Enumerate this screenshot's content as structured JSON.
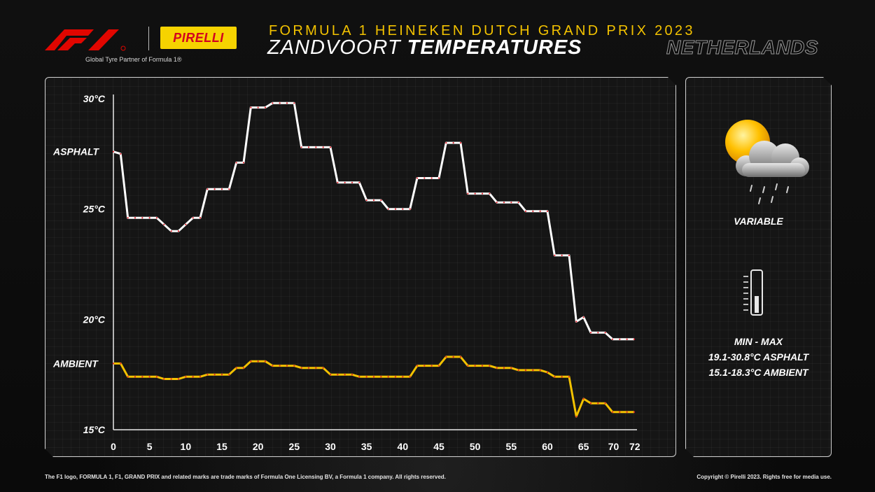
{
  "header": {
    "tagline": "Global Tyre Partner of Formula 1®",
    "pirelli_logo": "PIRELLI",
    "event": "FORMULA 1 HEINEKEN DUTCH GRAND PRIX 2023",
    "venue": "ZANDVOORT",
    "subject": "TEMPERATURES",
    "country": "NETHERLANDS"
  },
  "side": {
    "weather_icon": "sun-cloud-rain-icon",
    "weather": "VARIABLE",
    "thermometer_icon": "thermometer-icon",
    "minmax_label": "MIN  -  MAX",
    "asphalt_range": "19.1-30.8°C ASPHALT",
    "ambient_range": "15.1-18.3°C AMBIENT"
  },
  "footer": {
    "left": "The F1 logo, FORMULA 1, F1, GRAND PRIX and related marks are trade marks of Formula One Licensing BV, a Formula 1 company. All rights reserved.",
    "right": "Copyright © Pirelli 2023. Rights free for media use."
  },
  "colors": {
    "asphalt": "#ffffff",
    "ambient": "#f3c200",
    "marker": "#e0202a",
    "accent": "#f3c200"
  },
  "chart_data": {
    "type": "line",
    "xlim": [
      0,
      72
    ],
    "ylim": [
      15,
      30
    ],
    "x_ticks": [
      "0",
      "5",
      "10",
      "15",
      "20",
      "25",
      "30",
      "35",
      "40",
      "45",
      "50",
      "55",
      "60",
      "65",
      "70",
      "72"
    ],
    "y_ticks": [
      {
        "value": 30,
        "label": "30°C"
      },
      {
        "value": 25,
        "label": "25°C"
      },
      {
        "value": 20,
        "label": "20°C"
      },
      {
        "value": 15,
        "label": "15°C"
      }
    ],
    "series": [
      {
        "name": "ASPHALT",
        "points": [
          [
            0,
            27.6
          ],
          [
            1,
            27.5
          ],
          [
            2,
            24.6
          ],
          [
            3,
            24.6
          ],
          [
            4,
            24.6
          ],
          [
            5,
            24.6
          ],
          [
            6,
            24.6
          ],
          [
            7,
            24.3
          ],
          [
            8,
            24.0
          ],
          [
            9,
            24.0
          ],
          [
            10,
            24.3
          ],
          [
            11,
            24.6
          ],
          [
            12,
            24.6
          ],
          [
            13,
            25.9
          ],
          [
            14,
            25.9
          ],
          [
            15,
            25.9
          ],
          [
            16,
            25.9
          ],
          [
            17,
            27.1
          ],
          [
            18,
            27.1
          ],
          [
            19,
            29.6
          ],
          [
            20,
            29.6
          ],
          [
            21,
            29.6
          ],
          [
            22,
            29.8
          ],
          [
            23,
            29.8
          ],
          [
            24,
            29.8
          ],
          [
            25,
            29.8
          ],
          [
            26,
            27.8
          ],
          [
            27,
            27.8
          ],
          [
            28,
            27.8
          ],
          [
            29,
            27.8
          ],
          [
            30,
            27.8
          ],
          [
            31,
            26.2
          ],
          [
            32,
            26.2
          ],
          [
            33,
            26.2
          ],
          [
            34,
            26.2
          ],
          [
            35,
            25.4
          ],
          [
            36,
            25.4
          ],
          [
            37,
            25.4
          ],
          [
            38,
            25.0
          ],
          [
            39,
            25.0
          ],
          [
            40,
            25.0
          ],
          [
            41,
            25.0
          ],
          [
            42,
            26.4
          ],
          [
            43,
            26.4
          ],
          [
            44,
            26.4
          ],
          [
            45,
            26.4
          ],
          [
            46,
            28.0
          ],
          [
            47,
            28.0
          ],
          [
            48,
            28.0
          ],
          [
            49,
            25.7
          ],
          [
            50,
            25.7
          ],
          [
            51,
            25.7
          ],
          [
            52,
            25.7
          ],
          [
            53,
            25.3
          ],
          [
            54,
            25.3
          ],
          [
            55,
            25.3
          ],
          [
            56,
            25.3
          ],
          [
            57,
            24.9
          ],
          [
            58,
            24.9
          ],
          [
            59,
            24.9
          ],
          [
            60,
            24.9
          ],
          [
            61,
            22.9
          ],
          [
            62,
            22.9
          ],
          [
            63,
            22.9
          ],
          [
            64,
            19.9
          ],
          [
            65,
            20.1
          ],
          [
            66,
            19.4
          ],
          [
            67,
            19.4
          ],
          [
            68,
            19.4
          ],
          [
            69,
            19.1
          ],
          [
            70,
            19.1
          ],
          [
            71,
            19.1
          ],
          [
            72,
            19.1
          ]
        ]
      },
      {
        "name": "AMBIENT",
        "points": [
          [
            0,
            18.0
          ],
          [
            1,
            18.0
          ],
          [
            2,
            17.4
          ],
          [
            3,
            17.4
          ],
          [
            4,
            17.4
          ],
          [
            5,
            17.4
          ],
          [
            6,
            17.4
          ],
          [
            7,
            17.3
          ],
          [
            8,
            17.3
          ],
          [
            9,
            17.3
          ],
          [
            10,
            17.4
          ],
          [
            11,
            17.4
          ],
          [
            12,
            17.4
          ],
          [
            13,
            17.5
          ],
          [
            14,
            17.5
          ],
          [
            15,
            17.5
          ],
          [
            16,
            17.5
          ],
          [
            17,
            17.8
          ],
          [
            18,
            17.8
          ],
          [
            19,
            18.1
          ],
          [
            20,
            18.1
          ],
          [
            21,
            18.1
          ],
          [
            22,
            17.9
          ],
          [
            23,
            17.9
          ],
          [
            24,
            17.9
          ],
          [
            25,
            17.9
          ],
          [
            26,
            17.8
          ],
          [
            27,
            17.8
          ],
          [
            28,
            17.8
          ],
          [
            29,
            17.8
          ],
          [
            30,
            17.5
          ],
          [
            31,
            17.5
          ],
          [
            32,
            17.5
          ],
          [
            33,
            17.5
          ],
          [
            34,
            17.4
          ],
          [
            35,
            17.4
          ],
          [
            36,
            17.4
          ],
          [
            37,
            17.4
          ],
          [
            38,
            17.4
          ],
          [
            39,
            17.4
          ],
          [
            40,
            17.4
          ],
          [
            41,
            17.4
          ],
          [
            42,
            17.9
          ],
          [
            43,
            17.9
          ],
          [
            44,
            17.9
          ],
          [
            45,
            17.9
          ],
          [
            46,
            18.3
          ],
          [
            47,
            18.3
          ],
          [
            48,
            18.3
          ],
          [
            49,
            17.9
          ],
          [
            50,
            17.9
          ],
          [
            51,
            17.9
          ],
          [
            52,
            17.9
          ],
          [
            53,
            17.8
          ],
          [
            54,
            17.8
          ],
          [
            55,
            17.8
          ],
          [
            56,
            17.7
          ],
          [
            57,
            17.7
          ],
          [
            58,
            17.7
          ],
          [
            59,
            17.7
          ],
          [
            60,
            17.6
          ],
          [
            61,
            17.4
          ],
          [
            62,
            17.4
          ],
          [
            63,
            17.4
          ],
          [
            64,
            15.6
          ],
          [
            65,
            16.4
          ],
          [
            66,
            16.2
          ],
          [
            67,
            16.2
          ],
          [
            68,
            16.2
          ],
          [
            69,
            15.8
          ],
          [
            70,
            15.8
          ],
          [
            71,
            15.8
          ],
          [
            72,
            15.8
          ]
        ]
      }
    ]
  }
}
